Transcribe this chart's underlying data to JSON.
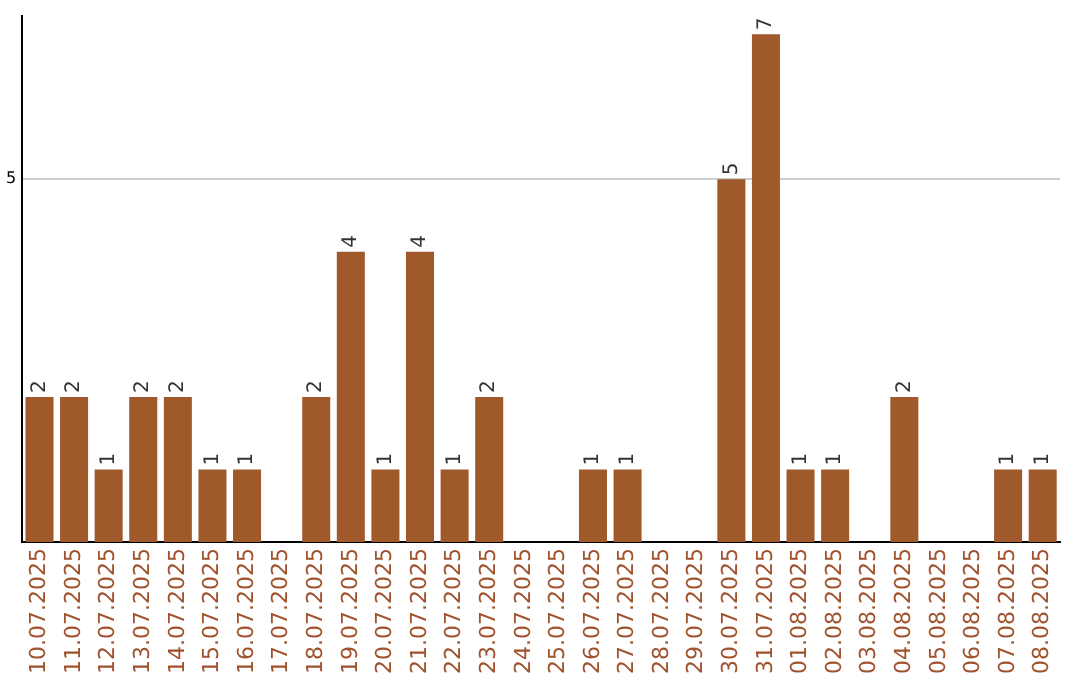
{
  "chart_data": {
    "type": "bar",
    "categories": [
      "10.07.2025",
      "11.07.2025",
      "12.07.2025",
      "13.07.2025",
      "14.07.2025",
      "15.07.2025",
      "16.07.2025",
      "17.07.2025",
      "18.07.2025",
      "19.07.2025",
      "20.07.2025",
      "21.07.2025",
      "22.07.2025",
      "23.07.2025",
      "24.07.2025",
      "25.07.2025",
      "26.07.2025",
      "27.07.2025",
      "28.07.2025",
      "29.07.2025",
      "30.07.2025",
      "31.07.2025",
      "01.08.2025",
      "02.08.2025",
      "03.08.2025",
      "04.08.2025",
      "05.08.2025",
      "06.08.2025",
      "07.08.2025",
      "08.08.2025"
    ],
    "values": [
      2,
      2,
      1,
      2,
      2,
      1,
      1,
      0,
      2,
      4,
      1,
      4,
      1,
      2,
      0,
      0,
      1,
      1,
      0,
      0,
      5,
      7,
      1,
      1,
      0,
      2,
      0,
      0,
      1,
      1
    ],
    "value_labels": [
      "2",
      "2",
      "1",
      "2",
      "2",
      "1",
      "1",
      null,
      "2",
      "4",
      "1",
      "4",
      "1",
      "2",
      null,
      null,
      "1",
      "1",
      null,
      null,
      "5",
      "7",
      "1",
      "1",
      null,
      "2",
      null,
      null,
      "1",
      "1"
    ],
    "color": "#a0592b",
    "ylim": [
      0,
      7.25
    ],
    "yticks": [
      5
    ],
    "grid": "y",
    "legend": false
  }
}
